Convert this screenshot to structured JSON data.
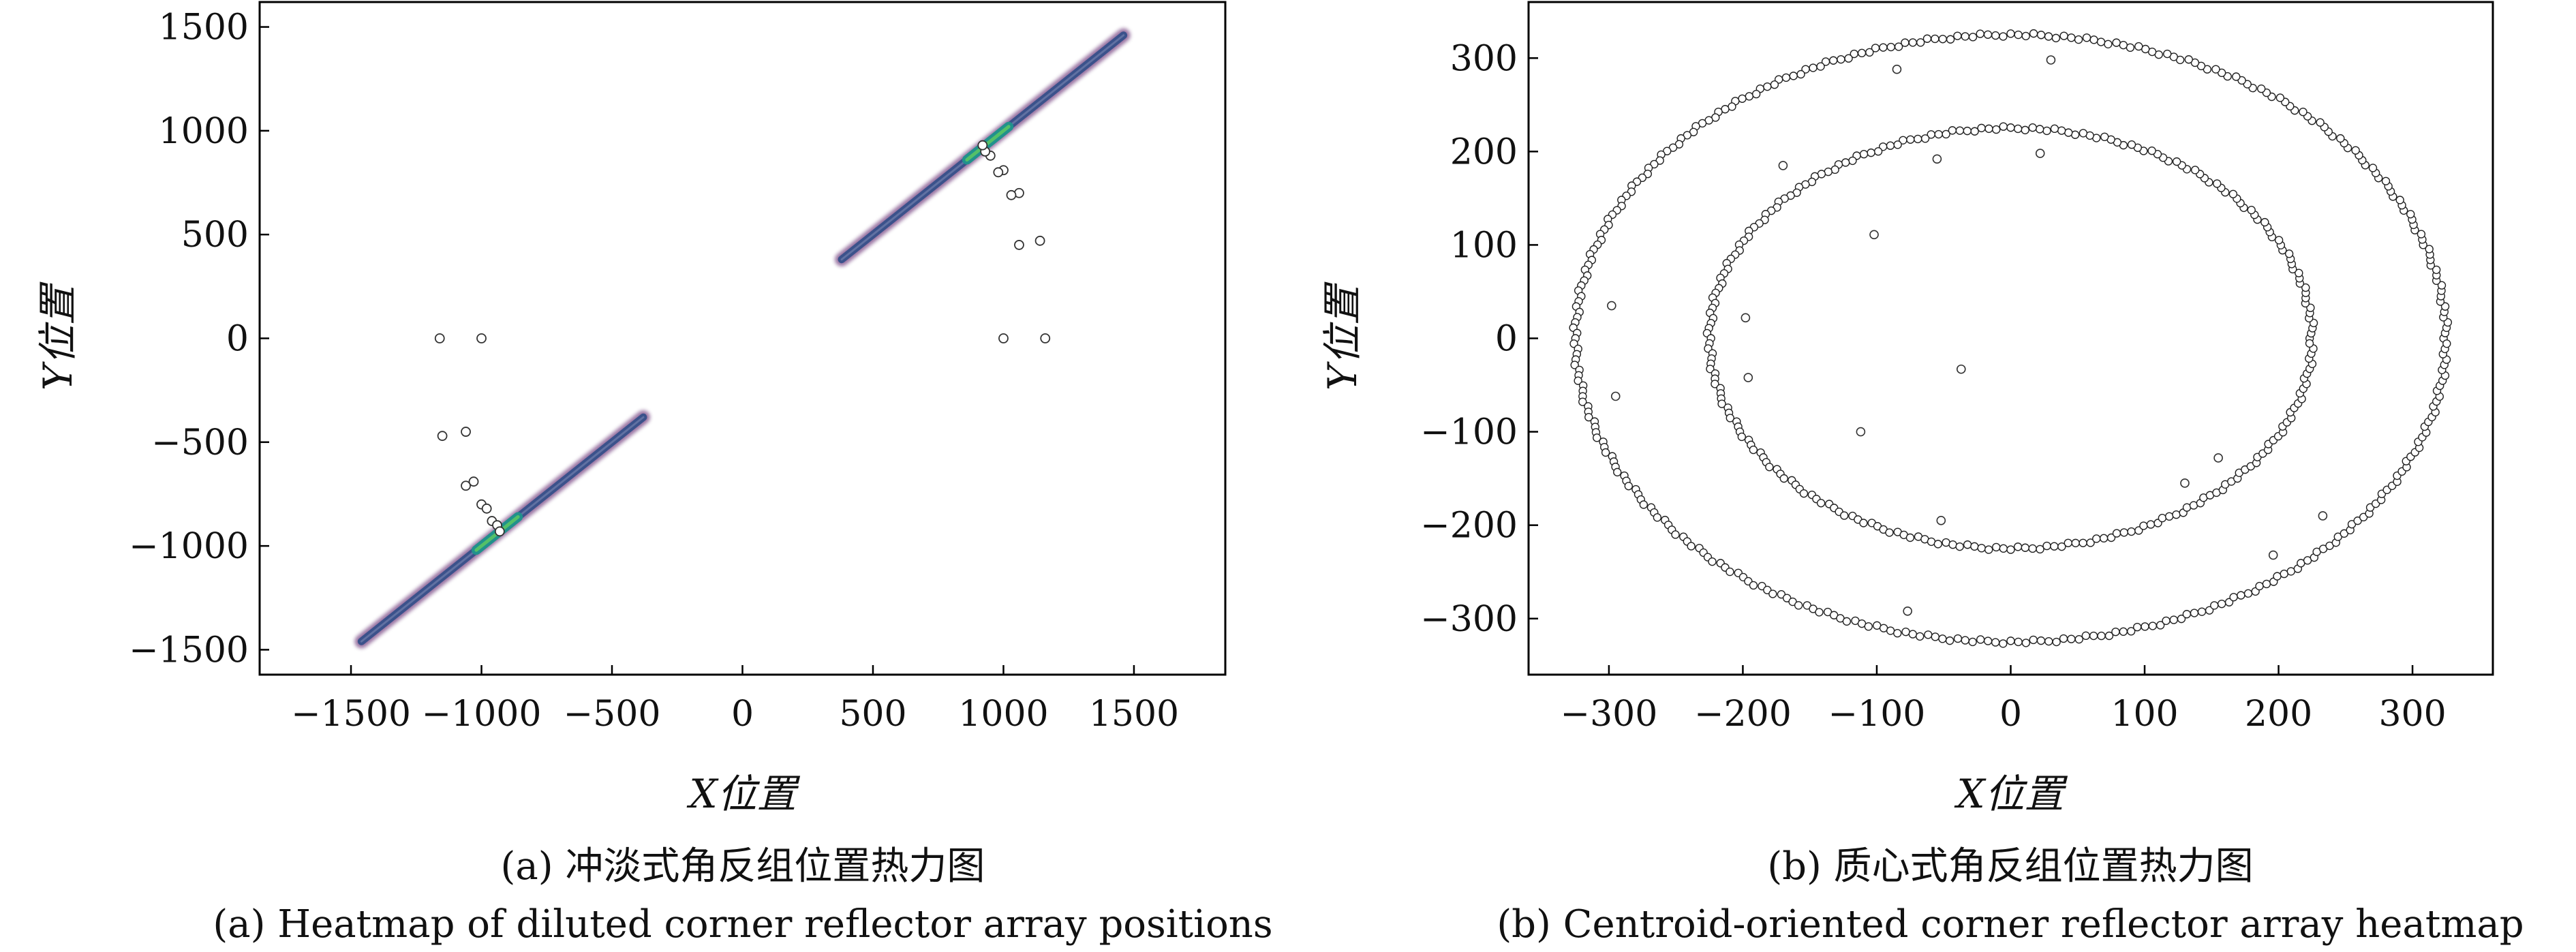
{
  "captions": {
    "a_zh": "(a) 冲淡式角反组位置热力图",
    "a_en": "(a) Heatmap of diluted corner reflector array positions",
    "b_zh": "(b) 质心式角反组位置热力图",
    "b_en": "(b) Centroid-oriented corner reflector array heatmap"
  },
  "chart_data": [
    {
      "type": "heatmap",
      "panel": "a",
      "title": "",
      "xlabel": "X位置",
      "ylabel": "Y位置",
      "xlim": [
        -1850,
        1850
      ],
      "ylim": [
        -1620,
        1620
      ],
      "xticks": [
        -1500,
        -1000,
        -500,
        0,
        500,
        1000,
        1500
      ],
      "yticks": [
        -1500,
        -1000,
        -500,
        0,
        500,
        1000,
        1500
      ],
      "xtick_labels": [
        "−1500",
        "−1000",
        "−500",
        "0",
        "500",
        "1000",
        "1500"
      ],
      "ytick_labels": [
        "−1500",
        "−1000",
        "−500",
        "0",
        "500",
        "1000",
        "1500"
      ],
      "grid": false,
      "colormap": [
        "#440154",
        "#3b528b",
        "#21918c",
        "#5ec962"
      ],
      "density_bands": [
        {
          "x1": -1460,
          "y1": -1460,
          "x2": -380,
          "y2": -380
        },
        {
          "x1": 380,
          "y1": 380,
          "x2": 1460,
          "y2": 1460
        }
      ],
      "density_hotspots": [
        {
          "x1": -1020,
          "y1": -1020,
          "x2": -860,
          "y2": -860
        },
        {
          "x1": 860,
          "y1": 860,
          "x2": 1020,
          "y2": 1020
        }
      ],
      "scatter_points": [
        {
          "x": -1160,
          "y": 0
        },
        {
          "x": -1000,
          "y": 0
        },
        {
          "x": -1150,
          "y": -470
        },
        {
          "x": -1060,
          "y": -450
        },
        {
          "x": -1030,
          "y": -690
        },
        {
          "x": -1060,
          "y": -710
        },
        {
          "x": -1000,
          "y": -800
        },
        {
          "x": -980,
          "y": -820
        },
        {
          "x": -960,
          "y": -880
        },
        {
          "x": -940,
          "y": -900
        },
        {
          "x": -930,
          "y": -930
        },
        {
          "x": 1160,
          "y": 0
        },
        {
          "x": 1000,
          "y": 0
        },
        {
          "x": 1140,
          "y": 470
        },
        {
          "x": 1060,
          "y": 450
        },
        {
          "x": 1060,
          "y": 700
        },
        {
          "x": 1030,
          "y": 690
        },
        {
          "x": 1000,
          "y": 810
        },
        {
          "x": 980,
          "y": 800
        },
        {
          "x": 950,
          "y": 880
        },
        {
          "x": 930,
          "y": 900
        },
        {
          "x": 920,
          "y": 930
        }
      ]
    },
    {
      "type": "scatter",
      "panel": "b",
      "title": "",
      "xlabel": "X位置",
      "ylabel": "Y位置",
      "xlim": [
        -360,
        360
      ],
      "ylim": [
        -360,
        360
      ],
      "xticks": [
        -300,
        -200,
        -100,
        0,
        100,
        200,
        300
      ],
      "yticks": [
        -300,
        -200,
        -100,
        0,
        100,
        200,
        300
      ],
      "xtick_labels": [
        "−300",
        "−200",
        "−100",
        "0",
        "100",
        "200",
        "300"
      ],
      "ytick_labels": [
        "−300",
        "−200",
        "−100",
        "0",
        "100",
        "200",
        "300"
      ],
      "grid": false,
      "rings": [
        {
          "radius": 225,
          "count": 260
        },
        {
          "radius": 325,
          "count": 360
        }
      ],
      "scatter_points": [
        {
          "x": -85,
          "y": 288
        },
        {
          "x": 30,
          "y": 298
        },
        {
          "x": -170,
          "y": 185
        },
        {
          "x": -55,
          "y": 192
        },
        {
          "x": 22,
          "y": 198
        },
        {
          "x": -102,
          "y": 111
        },
        {
          "x": -298,
          "y": 35
        },
        {
          "x": -198,
          "y": 22
        },
        {
          "x": -295,
          "y": -62
        },
        {
          "x": -196,
          "y": -42
        },
        {
          "x": -37,
          "y": -33
        },
        {
          "x": -112,
          "y": -100
        },
        {
          "x": 155,
          "y": -128
        },
        {
          "x": 130,
          "y": -155
        },
        {
          "x": -52,
          "y": -195
        },
        {
          "x": 233,
          "y": -190
        },
        {
          "x": 196,
          "y": -232
        },
        {
          "x": -77,
          "y": -292
        }
      ]
    }
  ]
}
